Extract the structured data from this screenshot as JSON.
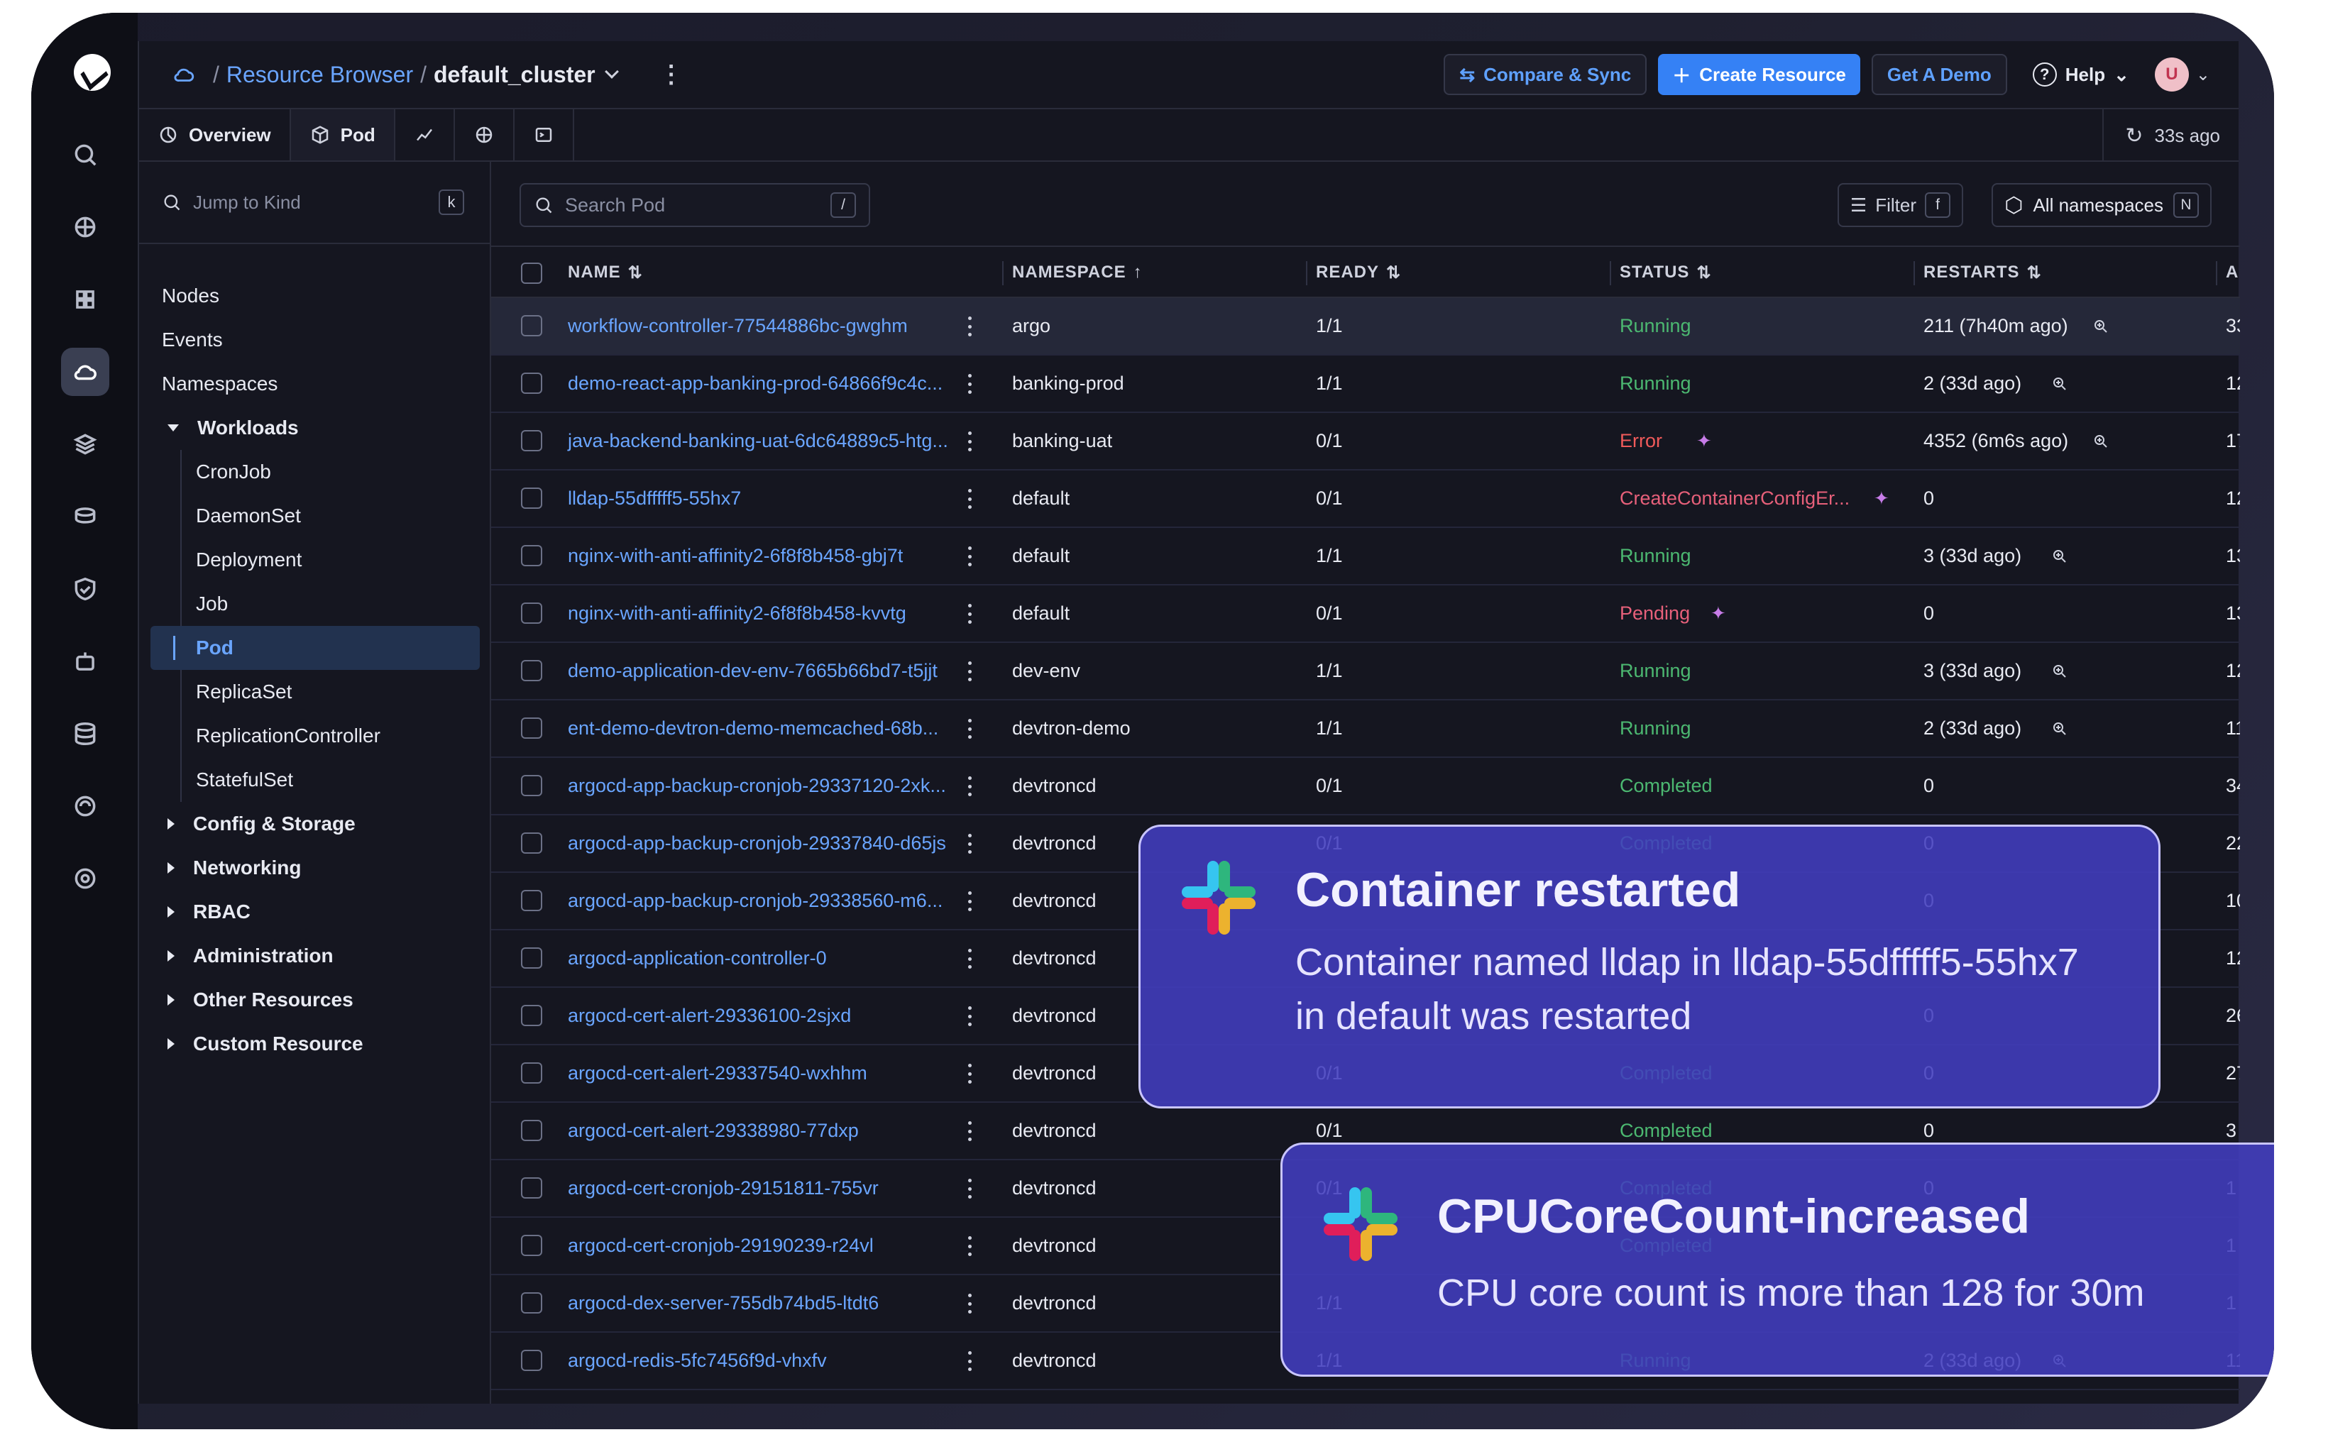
{
  "breadcrumb": {
    "root": "Resource Browser",
    "cluster": "default_cluster"
  },
  "header": {
    "compare": "Compare & Sync",
    "create": "Create Resource",
    "demo": "Get A Demo",
    "help": "Help",
    "avatar": "U"
  },
  "tabs": [
    {
      "label": "Overview"
    },
    {
      "label": "Pod"
    }
  ],
  "refresh": "33s ago",
  "sidebar": {
    "jump_placeholder": "Jump to Kind",
    "jump_key": "k",
    "top": [
      "Nodes",
      "Events",
      "Namespaces"
    ],
    "workloads": "Workloads",
    "workload_items": [
      "CronJob",
      "DaemonSet",
      "Deployment",
      "Job",
      "Pod",
      "ReplicaSet",
      "ReplicationController",
      "StatefulSet"
    ],
    "groups": [
      "Config & Storage",
      "Networking",
      "RBAC",
      "Administration",
      "Other Resources",
      "Custom Resource"
    ]
  },
  "toolbar": {
    "search_placeholder": "Search Pod",
    "search_key": "/",
    "filter": "Filter",
    "filter_key": "f",
    "namespaces": "All namespaces",
    "namespaces_key": "N"
  },
  "table": {
    "headers": [
      "NAME",
      "NAMESPACE",
      "READY",
      "STATUS",
      "RESTARTS",
      "A"
    ],
    "rows": [
      {
        "name": "workflow-controller-77544886bc-gwghm",
        "namespace": "argo",
        "ready": "1/1",
        "status": "Running",
        "restarts": "211 (7h40m ago)",
        "age": "33"
      },
      {
        "name": "demo-react-app-banking-prod-64866f9c4c...",
        "namespace": "banking-prod",
        "ready": "1/1",
        "status": "Running",
        "restarts": "2 (33d ago)",
        "age": "12"
      },
      {
        "name": "java-backend-banking-uat-6dc64889c5-htg...",
        "namespace": "banking-uat",
        "ready": "0/1",
        "status": "Error",
        "restarts": "4352 (6m6s ago)",
        "age": "17"
      },
      {
        "name": "lldap-55dfffff5-55hx7",
        "namespace": "default",
        "ready": "0/1",
        "status": "CreateContainerConfigEr...",
        "restarts": "0",
        "age": "12"
      },
      {
        "name": "nginx-with-anti-affinity2-6f8f8b458-gbj7t",
        "namespace": "default",
        "ready": "1/1",
        "status": "Running",
        "restarts": "3 (33d ago)",
        "age": "13"
      },
      {
        "name": "nginx-with-anti-affinity2-6f8f8b458-kvvtg",
        "namespace": "default",
        "ready": "0/1",
        "status": "Pending",
        "restarts": "0",
        "age": "13"
      },
      {
        "name": "demo-application-dev-env-7665b66bd7-t5jjt",
        "namespace": "dev-env",
        "ready": "1/1",
        "status": "Running",
        "restarts": "3 (33d ago)",
        "age": "12"
      },
      {
        "name": "ent-demo-devtron-demo-memcached-68b...",
        "namespace": "devtron-demo",
        "ready": "1/1",
        "status": "Running",
        "restarts": "2 (33d ago)",
        "age": "11"
      },
      {
        "name": "argocd-app-backup-cronjob-29337120-2xk...",
        "namespace": "devtroncd",
        "ready": "0/1",
        "status": "Completed",
        "restarts": "0",
        "age": "34"
      },
      {
        "name": "argocd-app-backup-cronjob-29337840-d65js",
        "namespace": "devtroncd",
        "ready": "0/1",
        "status": "Completed",
        "restarts": "0",
        "age": "22"
      },
      {
        "name": "argocd-app-backup-cronjob-29338560-m6...",
        "namespace": "devtroncd",
        "ready": "",
        "status": "",
        "restarts": "0",
        "age": "10"
      },
      {
        "name": "argocd-application-controller-0",
        "namespace": "devtroncd",
        "ready": "",
        "status": "",
        "restarts": "",
        "age": "12"
      },
      {
        "name": "argocd-cert-alert-29336100-2sjxd",
        "namespace": "devtroncd",
        "ready": "",
        "status": "",
        "restarts": "0",
        "age": "26"
      },
      {
        "name": "argocd-cert-alert-29337540-wxhhm",
        "namespace": "devtroncd",
        "ready": "0/1",
        "status": "Completed",
        "restarts": "0",
        "age": "27"
      },
      {
        "name": "argocd-cert-alert-29338980-77dxp",
        "namespace": "devtroncd",
        "ready": "0/1",
        "status": "Completed",
        "restarts": "0",
        "age": "3"
      },
      {
        "name": "argocd-cert-cronjob-29151811-755vr",
        "namespace": "devtroncd",
        "ready": "0/1",
        "status": "Completed",
        "restarts": "0",
        "age": "1"
      },
      {
        "name": "argocd-cert-cronjob-29190239-r24vl",
        "namespace": "devtroncd",
        "ready": "",
        "status": "Completed",
        "restarts": "",
        "age": "1"
      },
      {
        "name": "argocd-dex-server-755db74bd5-ltdt6",
        "namespace": "devtroncd",
        "ready": "1/1",
        "status": "",
        "restarts": "",
        "age": "1"
      },
      {
        "name": "argocd-redis-5fc7456f9d-vhxfv",
        "namespace": "devtroncd",
        "ready": "1/1",
        "status": "Running",
        "restarts": "2 (33d ago)",
        "age": "11"
      }
    ]
  },
  "notifications": [
    {
      "title": "Container restarted",
      "body_line1": "Container named lldap in lldap-55dfffff5-55hx7",
      "body_line2": "in default was restarted"
    },
    {
      "title": "CPUCoreCount-increased",
      "body_line1": "CPU core count is more than 128 for 30m"
    }
  ],
  "colors": {
    "accent": "#3581f5",
    "link": "#6aa5ff",
    "running": "#4cb871",
    "error": "#f05a5a",
    "toast": "#4a46c4"
  }
}
